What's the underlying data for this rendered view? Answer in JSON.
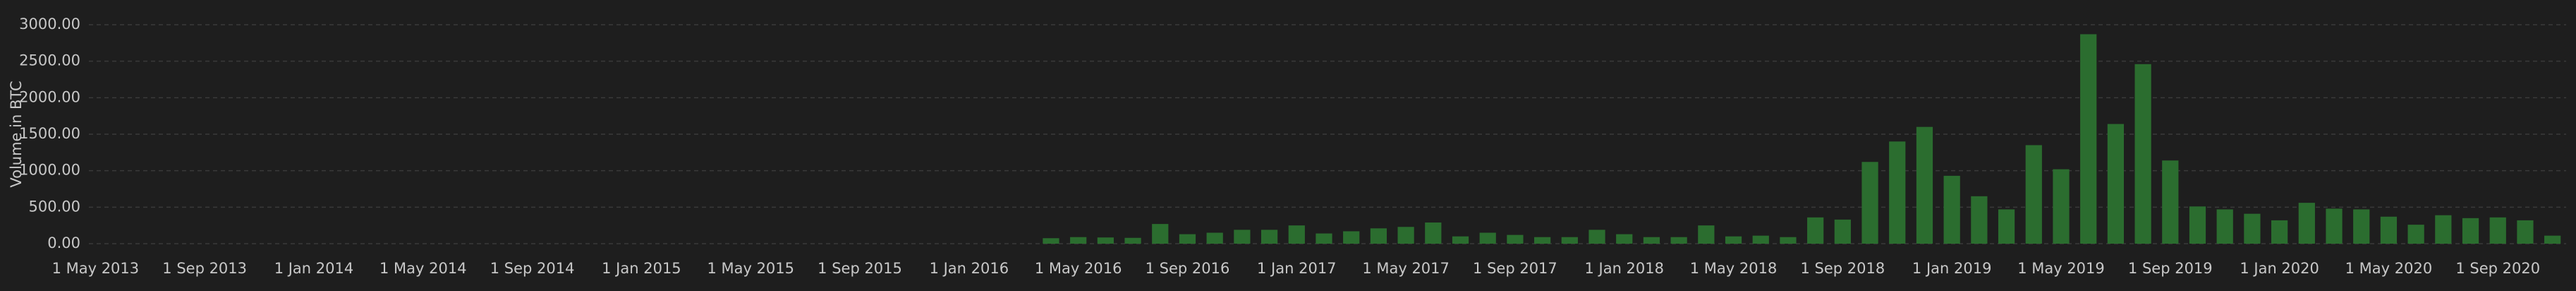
{
  "chart_data": {
    "type": "bar",
    "y_label": "Volume in BTC",
    "color": "#2b6d2f",
    "grid": true,
    "categories": [
      "1 May 2013",
      null,
      null,
      null,
      "1 Sep 2013",
      null,
      null,
      null,
      "1 Jan 2014",
      null,
      null,
      null,
      "1 May 2014",
      null,
      null,
      null,
      "1 Sep 2014",
      null,
      null,
      null,
      "1 Jan 2015",
      null,
      null,
      null,
      "1 May 2015",
      null,
      null,
      null,
      "1 Sep 2015",
      null,
      null,
      null,
      "1 Jan 2016",
      null,
      null,
      null,
      "1 May 2016",
      null,
      null,
      null,
      "1 Sep 2016",
      null,
      null,
      null,
      "1 Jan 2017",
      null,
      null,
      null,
      "1 May 2017",
      null,
      null,
      null,
      "1 Sep 2017",
      null,
      null,
      null,
      "1 Jan 2018",
      null,
      null,
      null,
      "1 May 2018",
      null,
      null,
      null,
      "1 Sep 2018",
      null,
      null,
      null,
      "1 Jan 2019",
      null,
      null,
      null,
      "1 May 2019",
      null,
      null,
      null,
      "1 Sep 2019",
      null,
      null,
      null,
      "1 Jan 2020",
      null,
      null,
      null,
      "1 May 2020",
      null,
      null,
      null,
      "1 Sep 2020",
      null,
      null
    ],
    "values": [
      null,
      null,
      null,
      null,
      null,
      null,
      null,
      null,
      null,
      null,
      null,
      null,
      null,
      null,
      null,
      null,
      null,
      null,
      null,
      null,
      null,
      null,
      null,
      null,
      null,
      null,
      null,
      null,
      null,
      null,
      null,
      null,
      null,
      null,
      null,
      75,
      90,
      85,
      80,
      270,
      130,
      150,
      190,
      190,
      250,
      140,
      170,
      210,
      230,
      290,
      100,
      150,
      120,
      90,
      90,
      190,
      130,
      90,
      90,
      250,
      100,
      110,
      90,
      360,
      330,
      1120,
      1400,
      1600,
      930,
      650,
      470,
      1350,
      1020,
      2870,
      1640,
      2460,
      1140,
      510,
      470,
      410,
      320,
      560,
      480,
      470,
      370,
      260,
      390,
      350,
      360,
      320,
      110
    ],
    "ylim": [
      0,
      3000
    ],
    "yticks": [
      {
        "value": 0,
        "label": "0.00"
      },
      {
        "value": 500,
        "label": "500.00"
      },
      {
        "value": 1000,
        "label": "1000.00"
      },
      {
        "value": 1500,
        "label": "1500.00"
      },
      {
        "value": 2000,
        "label": "2000.00"
      },
      {
        "value": 2500,
        "label": "2500.00"
      },
      {
        "value": 3000,
        "label": "3000.00"
      }
    ]
  }
}
